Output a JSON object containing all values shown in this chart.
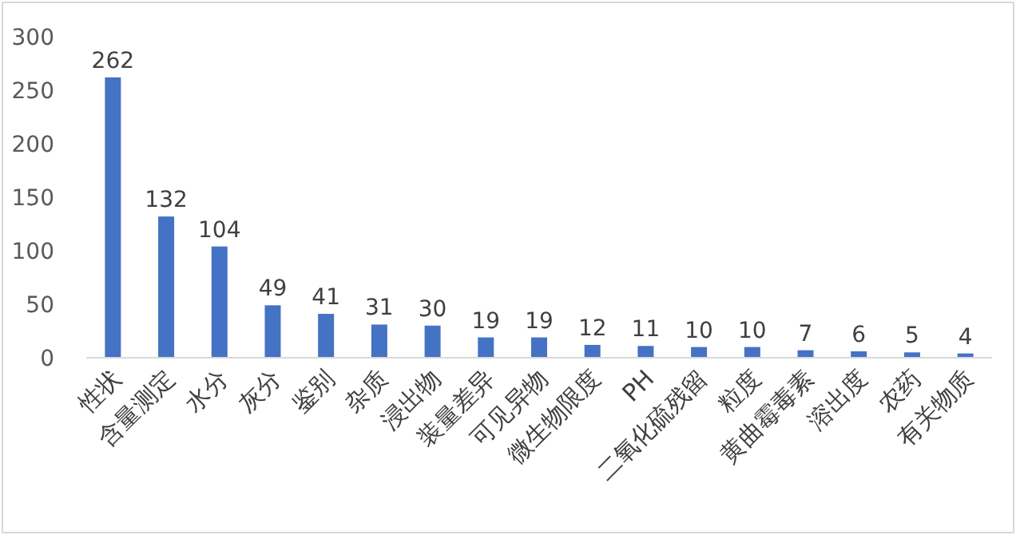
{
  "chart_data": {
    "type": "bar",
    "categories": [
      "性状",
      "含量测定",
      "水分",
      "灰分",
      "鉴别",
      "杂质",
      "浸出物",
      "装量差异",
      "可见异物",
      "微生物限度",
      "PH",
      "二氧化硫残留",
      "粒度",
      "黄曲霉毒素",
      "溶出度",
      "农药",
      "有关物质"
    ],
    "values": [
      262,
      132,
      104,
      49,
      41,
      31,
      30,
      19,
      19,
      12,
      11,
      10,
      10,
      7,
      6,
      5,
      4
    ],
    "color": "#4472c4",
    "ylim": [
      0,
      300
    ],
    "yticks": [
      0,
      50,
      100,
      150,
      200,
      250,
      300
    ],
    "data_labels": true
  }
}
